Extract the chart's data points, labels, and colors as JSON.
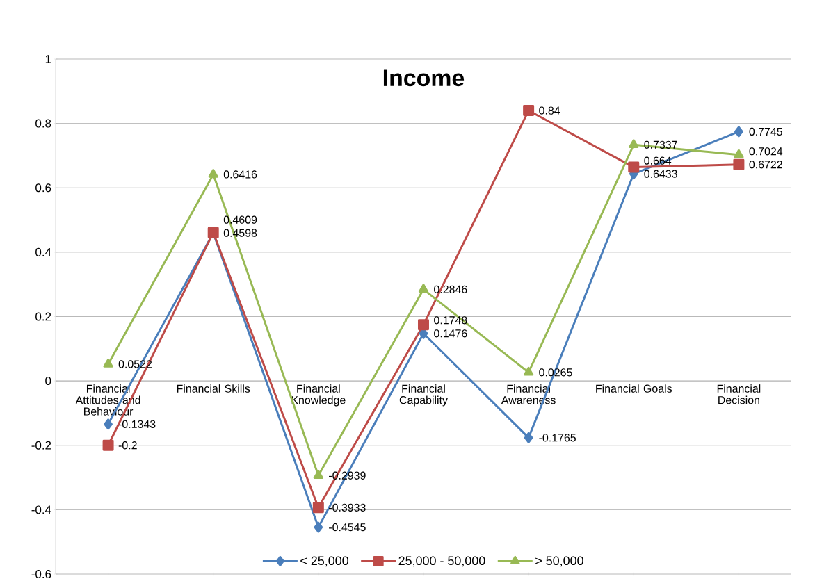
{
  "chart_data": {
    "type": "line",
    "title": "Income",
    "categories": [
      "Financial Attitudes and Behaviour",
      "Financial Skills",
      "Financial Knowledge",
      "Financial Capability",
      "Financial Awareness",
      "Financial Goals",
      "Financial Decision"
    ],
    "series": [
      {
        "name": "<  25,000",
        "color": "#4a7ebb",
        "marker": "diamond",
        "values": [
          -0.1343,
          0.4598,
          -0.4545,
          0.1476,
          -0.1765,
          0.6433,
          0.7745
        ]
      },
      {
        "name": "25,000 - 50,000",
        "color": "#be4b48",
        "marker": "square",
        "values": [
          -0.2,
          0.4609,
          -0.3933,
          0.1748,
          0.84,
          0.664,
          0.6722
        ]
      },
      {
        "name": "> 50,000",
        "color": "#98b954",
        "marker": "triangle",
        "values": [
          0.0522,
          0.6416,
          -0.2939,
          0.2846,
          0.0265,
          0.7337,
          0.7024
        ]
      }
    ],
    "ylim": [
      -0.6,
      1
    ],
    "yticks": [
      -0.6,
      -0.4,
      -0.2,
      0,
      0.2,
      0.4,
      0.6,
      0.8,
      1
    ],
    "grid": "y",
    "legend": "bottom",
    "data_labels": true,
    "line_style": "solid"
  }
}
